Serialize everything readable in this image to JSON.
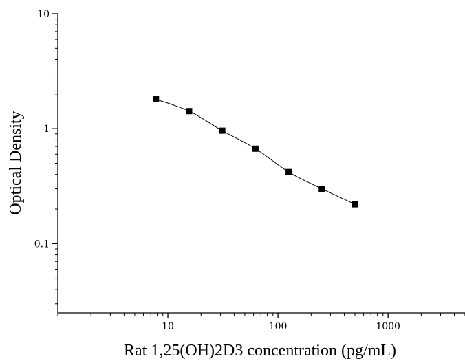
{
  "chart_data": {
    "type": "scatter",
    "title": "",
    "xlabel": "Rat 1,25(OH)2D3 concentration (pg/mL)",
    "ylabel": "Optical Density",
    "x_scale": "log",
    "y_scale": "log",
    "xlim": [
      1,
      5000
    ],
    "ylim": [
      0.025,
      10
    ],
    "x_ticks": [
      {
        "value": 10,
        "label": "10"
      },
      {
        "value": 100,
        "label": "100"
      },
      {
        "value": 1000,
        "label": "1000"
      }
    ],
    "y_ticks": [
      {
        "value": 0.1,
        "label": "0.1"
      },
      {
        "value": 1,
        "label": "1"
      },
      {
        "value": 10,
        "label": "10"
      }
    ],
    "grid": false,
    "legend": "none",
    "series": [
      {
        "marker": "square",
        "color": "#000000",
        "fit_line": true,
        "points": [
          {
            "x": 7.8,
            "y": 1.8
          },
          {
            "x": 15.6,
            "y": 1.42
          },
          {
            "x": 31.2,
            "y": 0.96
          },
          {
            "x": 62.5,
            "y": 0.67
          },
          {
            "x": 125,
            "y": 0.42
          },
          {
            "x": 250,
            "y": 0.3
          },
          {
            "x": 500,
            "y": 0.22
          }
        ]
      }
    ]
  }
}
